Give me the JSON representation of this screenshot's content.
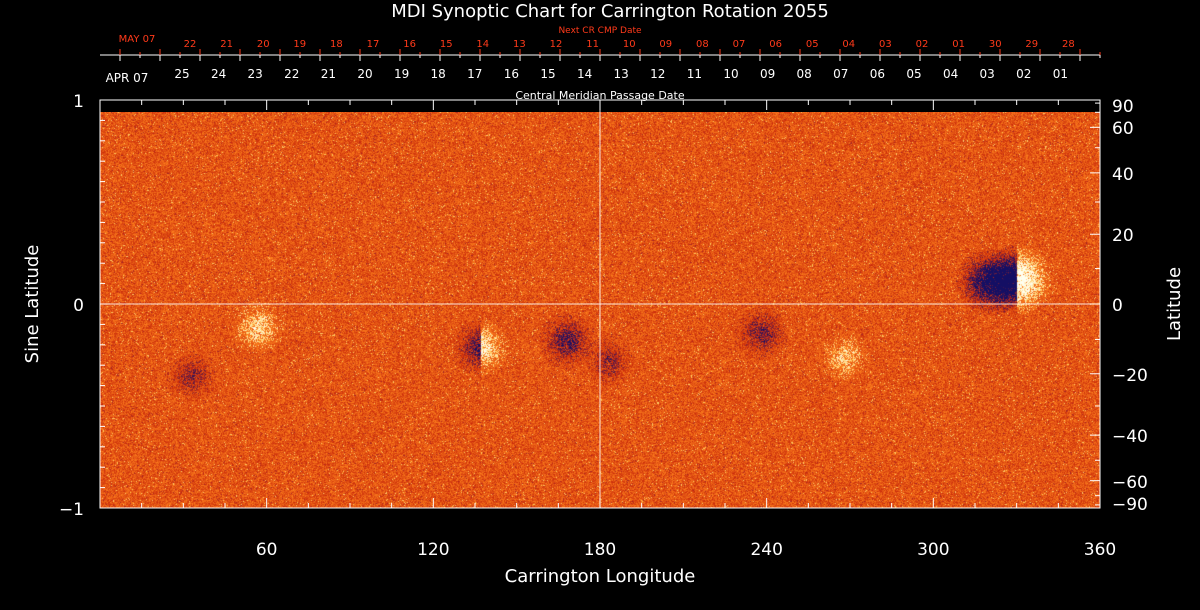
{
  "chart_data": {
    "type": "heatmap",
    "title": "MDI Synoptic Chart for Carrington Rotation 2055",
    "xlabel": "Carrington Longitude",
    "ylabel_left": "Sine Latitude",
    "ylabel_right": "Latitude",
    "xlim": [
      0,
      360
    ],
    "ylim_sine": [
      -1,
      1
    ],
    "x_ticks": [
      60,
      120,
      180,
      240,
      300,
      360
    ],
    "y_ticks_sine": [
      {
        "v": 1,
        "label": "1"
      },
      {
        "v": 0,
        "label": "0"
      },
      {
        "v": -1,
        "label": "−1"
      }
    ],
    "y_ticks_latitude": [
      {
        "deg": 90,
        "label": "90"
      },
      {
        "deg": 60,
        "label": "60"
      },
      {
        "deg": 40,
        "label": "40"
      },
      {
        "deg": 20,
        "label": "20"
      },
      {
        "deg": 0,
        "label": "0"
      },
      {
        "deg": -20,
        "label": "−20"
      },
      {
        "deg": -40,
        "label": "−40"
      },
      {
        "deg": -60,
        "label": "−60"
      },
      {
        "deg": -90,
        "label": "−90"
      }
    ],
    "cmp_axis": {
      "label": "Central Meridian Passage Date",
      "month_label": "APR 07",
      "dates": [
        "25",
        "24",
        "23",
        "22",
        "21",
        "20",
        "19",
        "18",
        "17",
        "16",
        "15",
        "14",
        "13",
        "12",
        "11",
        "10",
        "09",
        "08",
        "07",
        "06",
        "05",
        "04",
        "03",
        "02",
        "01"
      ]
    },
    "next_cmp_axis": {
      "label": "Next CR CMP Date",
      "month_label": "MAY 07",
      "dates": [
        "22",
        "21",
        "20",
        "19",
        "18",
        "17",
        "16",
        "15",
        "14",
        "13",
        "12",
        "11",
        "10",
        "09",
        "08",
        "07",
        "06",
        "05",
        "04",
        "03",
        "02",
        "01",
        "30",
        "29",
        "28"
      ]
    },
    "active_regions": [
      {
        "lon": 330,
        "sinlat": 0.12,
        "polarity": "mixed",
        "strength": 1.0
      },
      {
        "lon": 320,
        "sinlat": 0.11,
        "polarity": "negative",
        "strength": 0.9
      },
      {
        "lon": 137,
        "sinlat": -0.21,
        "polarity": "mixed",
        "strength": 0.6
      },
      {
        "lon": 168,
        "sinlat": -0.18,
        "polarity": "negative",
        "strength": 0.6
      },
      {
        "lon": 57,
        "sinlat": -0.11,
        "polarity": "positive",
        "strength": 0.5
      },
      {
        "lon": 238,
        "sinlat": -0.14,
        "polarity": "negative",
        "strength": 0.5
      },
      {
        "lon": 268,
        "sinlat": -0.26,
        "polarity": "positive",
        "strength": 0.4
      },
      {
        "lon": 183,
        "sinlat": -0.28,
        "polarity": "negative",
        "strength": 0.4
      },
      {
        "lon": 33,
        "sinlat": -0.35,
        "polarity": "negative",
        "strength": 0.4
      }
    ],
    "colors": {
      "background": "#000000",
      "field_base": "#e84a10",
      "positive_field": "#fff2b0",
      "negative_field": "#1a1a60",
      "annotation_red": "#ff3a1a",
      "axis": "#ffffff"
    }
  }
}
